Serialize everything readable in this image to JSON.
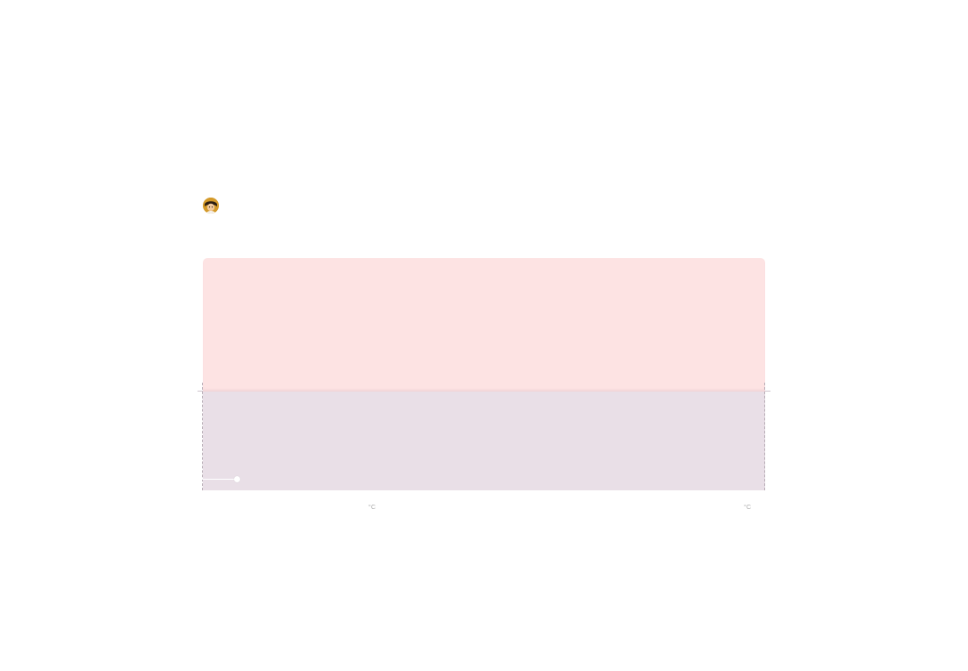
{
  "user": {
    "avatar_icon": "user-avatar-icon"
  },
  "temperature": {
    "colors": {
      "hot_band": "#fde3e3",
      "cool_band": "#e9dfe7",
      "guide": "#b8adb6"
    },
    "slider": {
      "icon": "slider-knob-icon"
    },
    "units": [
      "°C",
      "°C"
    ]
  }
}
